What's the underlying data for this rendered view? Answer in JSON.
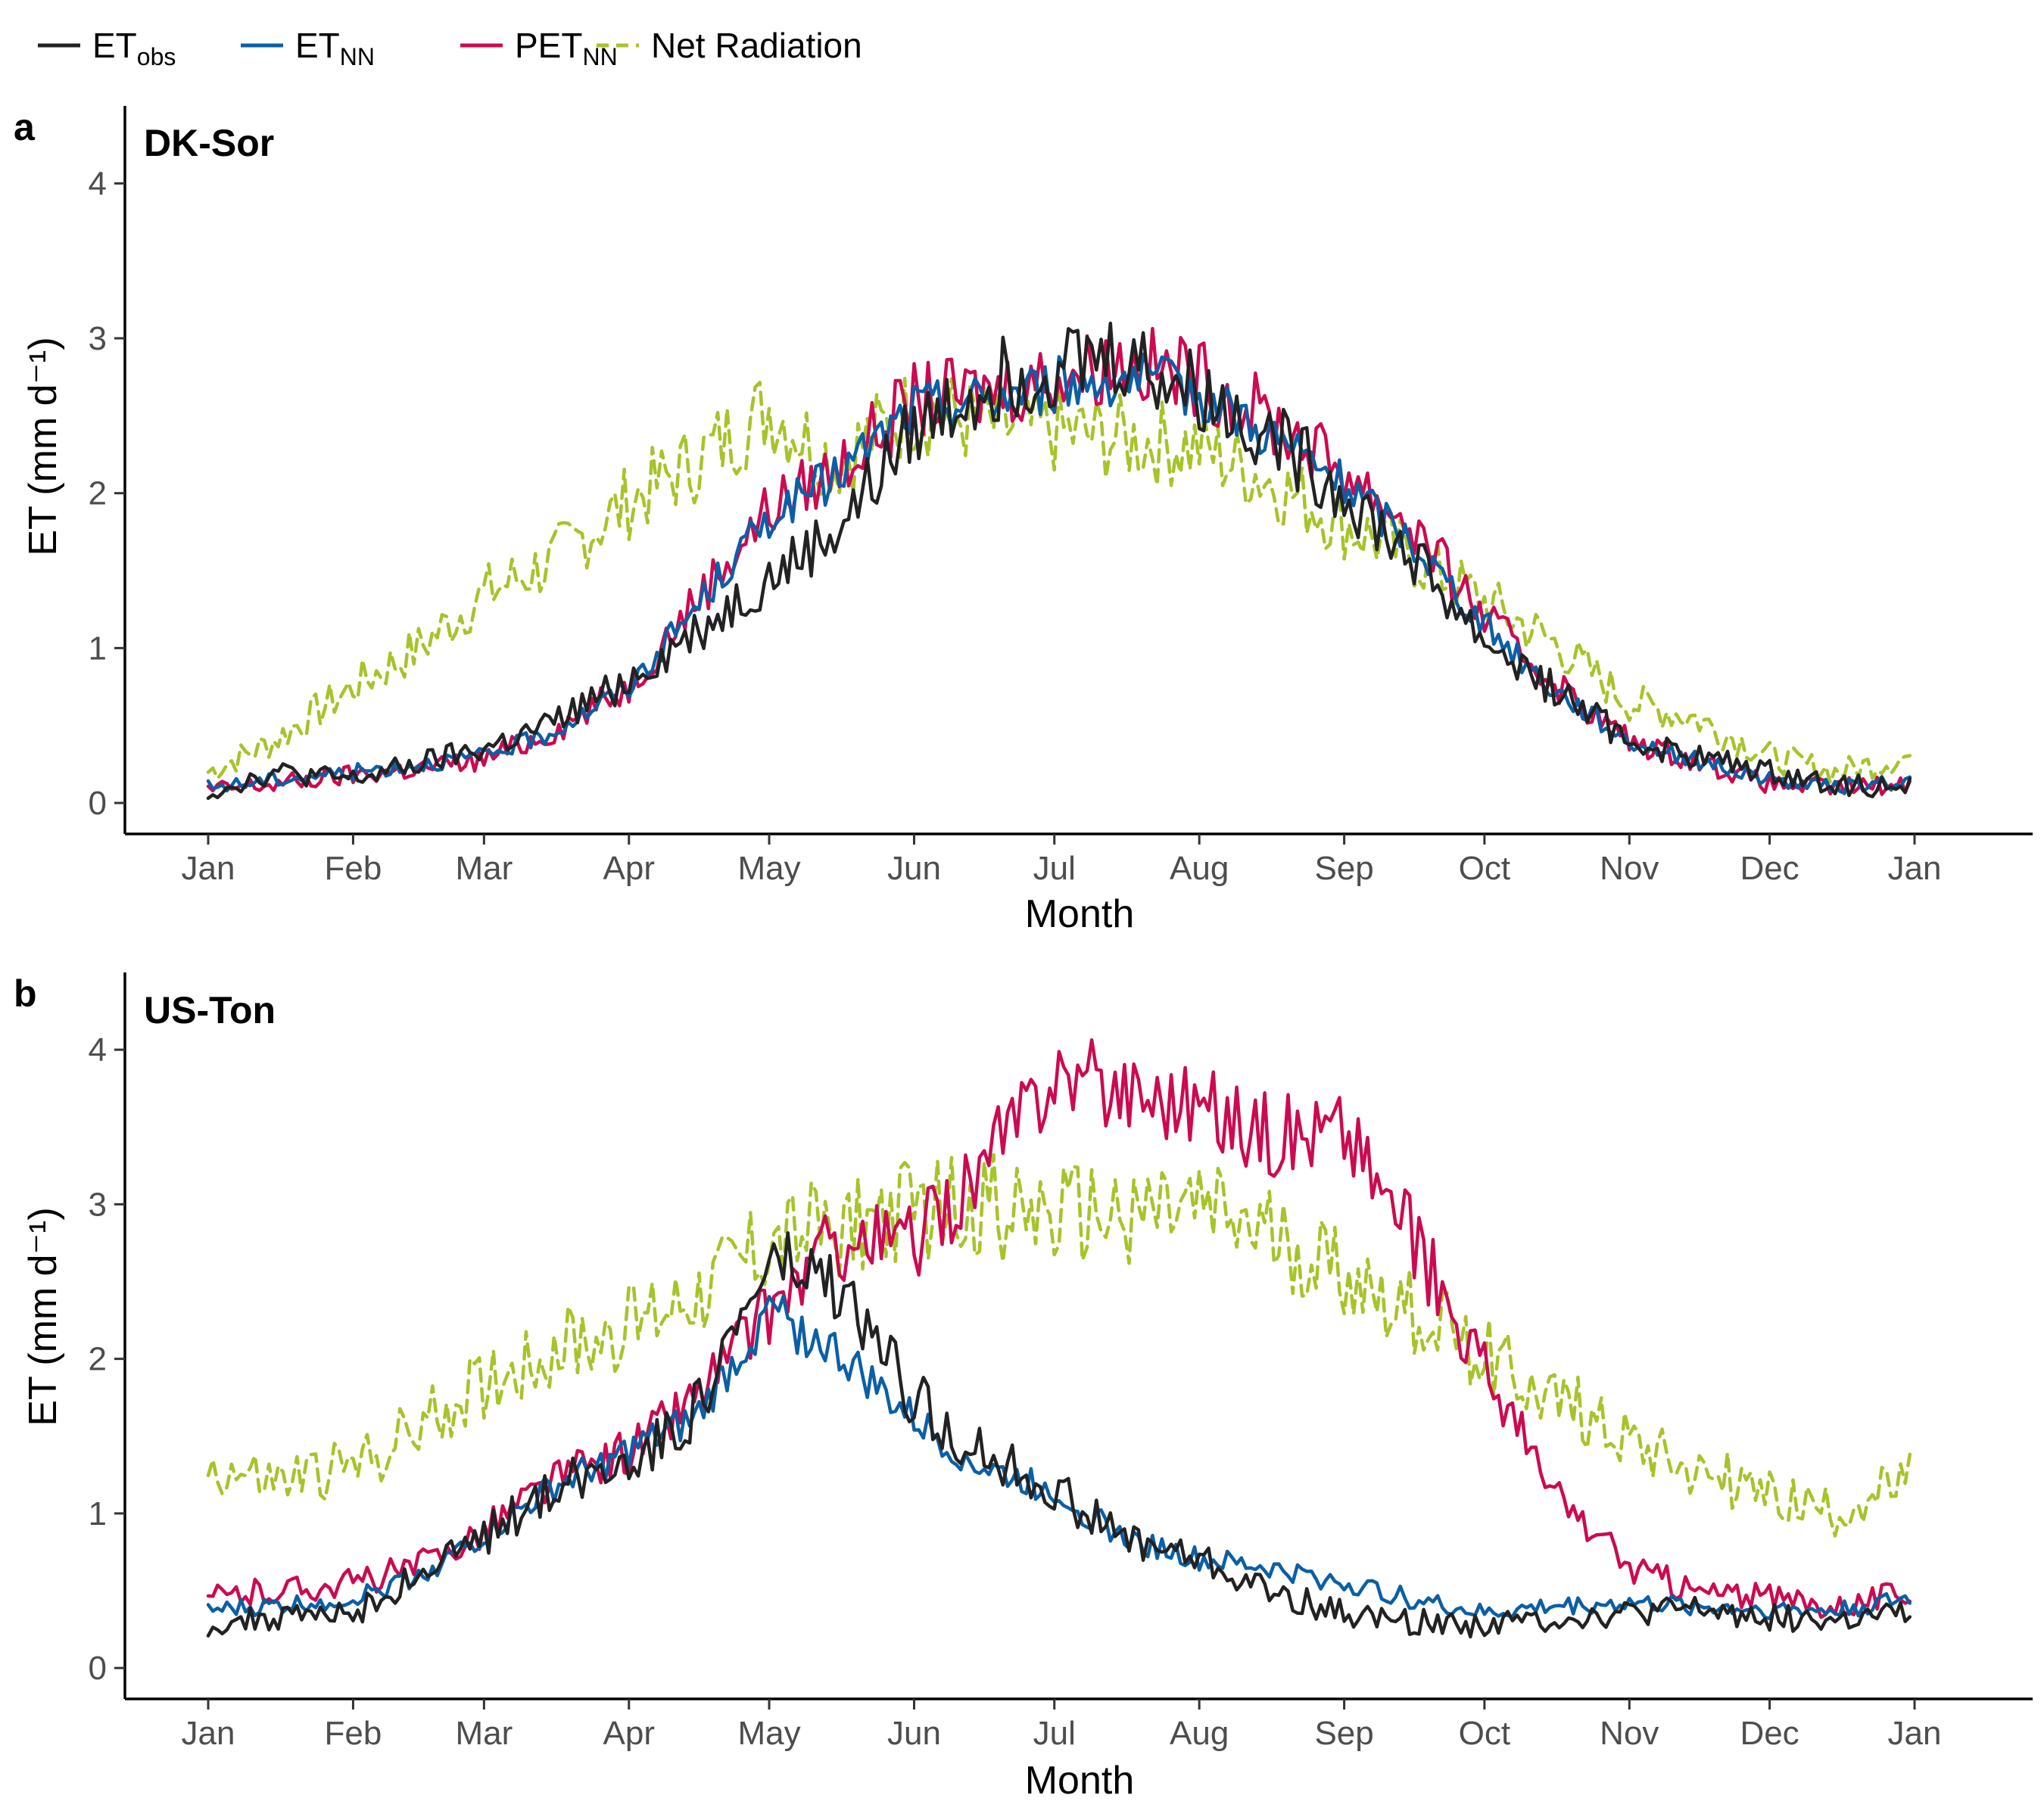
{
  "legend": [
    {
      "base": "ET",
      "sub": "obs",
      "color": "#222222",
      "dashed": false
    },
    {
      "base": "ET",
      "sub": "NN",
      "color": "#0b5fa5",
      "dashed": false
    },
    {
      "base": "PET",
      "sub": "NN",
      "color": "#cc0a51",
      "dashed": false
    },
    {
      "base": "Net Radiation",
      "sub": "",
      "color": "#a6c42a",
      "dashed": true
    }
  ],
  "colors": {
    "et_obs": "#222222",
    "et_nn": "#0b5fa5",
    "pet_nn": "#cc0a51",
    "net_radiation": "#a6c42a"
  },
  "chart_data": [
    {
      "type": "line",
      "panel": "a",
      "title": "DK-Sor",
      "xlabel": "Month",
      "ylabel": "ET (mm d⁻¹)",
      "x_ticks": [
        "Jan",
        "Feb",
        "Mar",
        "Apr",
        "May",
        "Jun",
        "Jul",
        "Aug",
        "Sep",
        "Oct",
        "Nov",
        "Dec",
        "Jan"
      ],
      "y_ticks": [
        0,
        1,
        2,
        3,
        4
      ],
      "ylim": [
        -0.2,
        4.5
      ],
      "grid": false,
      "legend_position": "top-left",
      "series": [
        {
          "key": "et_obs",
          "x": [
            "Jan 1",
            "Jan 15",
            "Feb 1",
            "Feb 15",
            "Mar 1",
            "Mar 15",
            "Apr 1",
            "Apr 15",
            "May 1",
            "May 15",
            "Jun 1",
            "Jun 15",
            "Jul 1",
            "Jul 15",
            "Aug 1",
            "Aug 15",
            "Sep 1",
            "Sep 15",
            "Oct 1",
            "Oct 15",
            "Nov 1",
            "Nov 15",
            "Dec 1",
            "Dec 15",
            "Dec 31"
          ],
          "values": [
            0.07,
            0.2,
            0.15,
            0.25,
            0.35,
            0.5,
            0.8,
            1.1,
            1.45,
            1.75,
            2.4,
            2.7,
            2.85,
            2.9,
            2.65,
            2.4,
            2.0,
            1.6,
            1.05,
            0.75,
            0.4,
            0.3,
            0.2,
            0.12,
            0.1
          ]
        },
        {
          "key": "et_nn",
          "x": [
            "Jan 1",
            "Jan 15",
            "Feb 1",
            "Feb 15",
            "Mar 1",
            "Mar 15",
            "Apr 1",
            "Apr 15",
            "May 1",
            "May 15",
            "Jun 1",
            "Jun 15",
            "Jul 1",
            "Jul 15",
            "Aug 1",
            "Aug 15",
            "Sep 1",
            "Sep 15",
            "Oct 1",
            "Oct 15",
            "Nov 1",
            "Nov 15",
            "Dec 1",
            "Dec 15",
            "Dec 31"
          ],
          "values": [
            0.1,
            0.15,
            0.2,
            0.25,
            0.3,
            0.45,
            0.75,
            1.25,
            1.85,
            2.1,
            2.55,
            2.6,
            2.7,
            2.75,
            2.65,
            2.4,
            2.05,
            1.7,
            1.15,
            0.75,
            0.4,
            0.28,
            0.15,
            0.1,
            0.14
          ]
        },
        {
          "key": "pet_nn",
          "x": [
            "Jan 1",
            "Jan 15",
            "Feb 1",
            "Feb 15",
            "Mar 1",
            "Mar 15",
            "Apr 1",
            "Apr 15",
            "May 1",
            "May 15",
            "Jun 1",
            "Jun 15",
            "Jul 1",
            "Jul 15",
            "Aug 1",
            "Aug 15",
            "Sep 1",
            "Sep 15",
            "Oct 1",
            "Oct 15",
            "Nov 1",
            "Nov 15",
            "Dec 1",
            "Dec 15",
            "Dec 31"
          ],
          "values": [
            0.08,
            0.12,
            0.18,
            0.22,
            0.28,
            0.45,
            0.75,
            1.3,
            1.9,
            2.15,
            2.6,
            2.65,
            2.75,
            2.85,
            2.75,
            2.5,
            2.15,
            1.8,
            1.2,
            0.8,
            0.4,
            0.28,
            0.12,
            0.1,
            0.12
          ]
        },
        {
          "key": "net_radiation",
          "dashed": true,
          "x": [
            "Jan 1",
            "Jan 15",
            "Feb 1",
            "Feb 15",
            "Mar 1",
            "Mar 15",
            "Apr 1",
            "Apr 15",
            "May 1",
            "May 15",
            "Jun 1",
            "Jun 15",
            "Jul 1",
            "Jul 15",
            "Aug 1",
            "Aug 15",
            "Sep 1",
            "Sep 15",
            "Oct 1",
            "Oct 15",
            "Nov 1",
            "Nov 15",
            "Dec 1",
            "Dec 15",
            "Dec 31"
          ],
          "values": [
            0.2,
            0.4,
            0.75,
            1.0,
            1.35,
            1.55,
            1.95,
            2.2,
            2.55,
            2.2,
            2.55,
            2.45,
            2.4,
            2.35,
            2.3,
            2.1,
            1.8,
            1.6,
            1.3,
            1.05,
            0.65,
            0.55,
            0.3,
            0.2,
            0.3
          ]
        }
      ]
    },
    {
      "type": "line",
      "panel": "b",
      "title": "US-Ton",
      "xlabel": "Month",
      "ylabel": "ET (mm d⁻¹)",
      "x_ticks": [
        "Jan",
        "Feb",
        "Mar",
        "Apr",
        "May",
        "Jun",
        "Jul",
        "Aug",
        "Sep",
        "Oct",
        "Nov",
        "Dec",
        "Jan"
      ],
      "y_ticks": [
        0,
        1,
        2,
        3,
        4
      ],
      "ylim": [
        -0.2,
        4.5
      ],
      "grid": false,
      "legend_position": "top-left",
      "series": [
        {
          "key": "et_obs",
          "x": [
            "Jan 1",
            "Jan 15",
            "Feb 1",
            "Feb 15",
            "Mar 1",
            "Mar 15",
            "Apr 1",
            "Apr 15",
            "May 1",
            "May 15",
            "Jun 1",
            "Jun 15",
            "Jul 1",
            "Jul 15",
            "Aug 1",
            "Aug 15",
            "Sep 1",
            "Sep 15",
            "Oct 1",
            "Oct 15",
            "Nov 1",
            "Nov 15",
            "Dec 1",
            "Dec 15",
            "Dec 31"
          ],
          "values": [
            0.28,
            0.32,
            0.35,
            0.6,
            0.85,
            1.15,
            1.35,
            1.65,
            2.6,
            2.45,
            1.75,
            1.4,
            1.15,
            0.85,
            0.7,
            0.5,
            0.35,
            0.3,
            0.28,
            0.32,
            0.35,
            0.38,
            0.33,
            0.3,
            0.35
          ]
        },
        {
          "key": "et_nn",
          "x": [
            "Jan 1",
            "Jan 15",
            "Feb 1",
            "Feb 15",
            "Mar 1",
            "Mar 15",
            "Apr 1",
            "Apr 15",
            "May 1",
            "May 15",
            "Jun 1",
            "Jun 15",
            "Jul 1",
            "Jul 15",
            "Aug 1",
            "Aug 15",
            "Sep 1",
            "Sep 15",
            "Oct 1",
            "Oct 15",
            "Nov 1",
            "Nov 15",
            "Dec 1",
            "Dec 15",
            "Dec 31"
          ],
          "values": [
            0.37,
            0.4,
            0.45,
            0.6,
            0.85,
            1.15,
            1.4,
            1.6,
            2.3,
            2.05,
            1.6,
            1.3,
            1.15,
            0.85,
            0.7,
            0.65,
            0.55,
            0.45,
            0.35,
            0.4,
            0.42,
            0.4,
            0.38,
            0.37,
            0.45
          ]
        },
        {
          "key": "pet_nn",
          "x": [
            "Jan 1",
            "Jan 15",
            "Feb 1",
            "Feb 15",
            "Mar 1",
            "Mar 15",
            "Apr 1",
            "Apr 15",
            "May 1",
            "May 15",
            "Jun 1",
            "Jun 15",
            "Jul 1",
            "Jul 15",
            "Aug 1",
            "Aug 15",
            "Sep 1",
            "Sep 15",
            "Oct 1",
            "Oct 15",
            "Nov 1",
            "Nov 15",
            "Dec 1",
            "Dec 15",
            "Dec 31"
          ],
          "values": [
            0.45,
            0.5,
            0.55,
            0.65,
            0.9,
            1.2,
            1.4,
            1.75,
            2.3,
            2.75,
            2.75,
            3.2,
            3.85,
            3.75,
            3.65,
            3.45,
            3.5,
            2.8,
            1.95,
            1.15,
            0.65,
            0.5,
            0.45,
            0.4,
            0.5
          ]
        },
        {
          "key": "net_radiation",
          "dashed": true,
          "x": [
            "Jan 1",
            "Jan 15",
            "Feb 1",
            "Feb 15",
            "Mar 1",
            "Mar 15",
            "Apr 1",
            "Apr 15",
            "May 1",
            "May 15",
            "Jun 1",
            "Jun 15",
            "Jul 1",
            "Jul 15",
            "Aug 1",
            "Aug 15",
            "Sep 1",
            "Sep 15",
            "Oct 1",
            "Oct 15",
            "Nov 1",
            "Nov 15",
            "Dec 1",
            "Dec 15",
            "Dec 31"
          ],
          "values": [
            1.3,
            1.2,
            1.3,
            1.55,
            1.85,
            2.05,
            2.2,
            2.45,
            2.75,
            2.85,
            2.95,
            3.0,
            2.9,
            2.95,
            2.95,
            2.8,
            2.55,
            2.3,
            2.05,
            1.75,
            1.5,
            1.3,
            1.1,
            1.0,
            1.2
          ]
        }
      ]
    }
  ]
}
